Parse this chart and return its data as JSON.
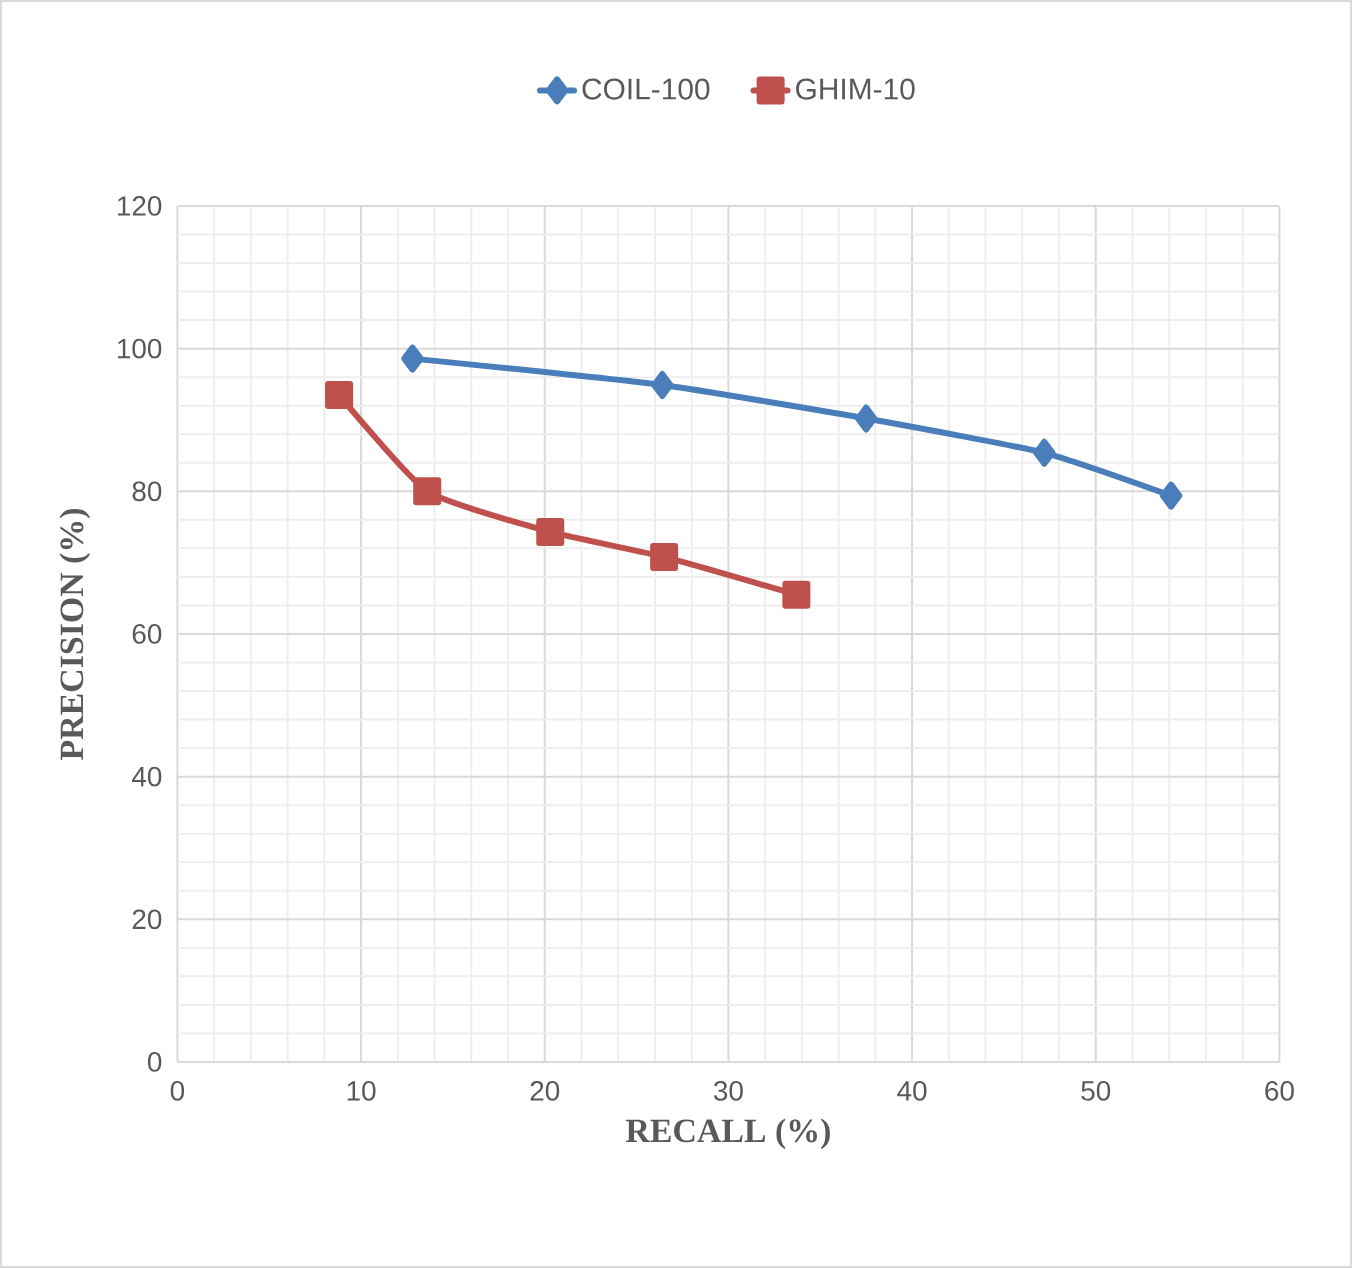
{
  "chart_data": {
    "type": "line",
    "xlabel": "RECALL (%)",
    "ylabel": "PRECISION (%)",
    "xlim": [
      0,
      60
    ],
    "xticks": [
      0,
      10,
      20,
      30,
      40,
      50,
      60
    ],
    "ylim": [
      0,
      120
    ],
    "yticks": [
      0,
      20,
      40,
      60,
      80,
      100,
      120
    ],
    "grid": true,
    "legend": "top",
    "line_style": "solid",
    "series": [
      {
        "name": "COIL-100",
        "color": "#4a7ebb",
        "marker": "diamond",
        "x": [
          12.8,
          26.4,
          37.5,
          47.2,
          54.1
        ],
        "values": [
          98.6,
          94.9,
          90.2,
          85.4,
          79.4
        ]
      },
      {
        "name": "GHIM-10",
        "color": "#c0504d",
        "marker": "square",
        "x": [
          8.8,
          13.6,
          20.3,
          26.5,
          33.7
        ],
        "values": [
          93.5,
          80.0,
          74.3,
          70.8,
          65.5
        ]
      }
    ]
  }
}
